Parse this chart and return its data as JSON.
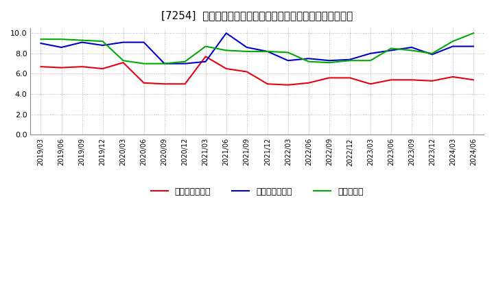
{
  "title": "[7254]  売上債権回転率、買入債務回転率、在庫回転率の推移",
  "x_labels": [
    "2019/03",
    "2019/06",
    "2019/09",
    "2019/12",
    "2020/03",
    "2020/06",
    "2020/09",
    "2020/12",
    "2021/03",
    "2021/06",
    "2021/09",
    "2021/12",
    "2022/03",
    "2022/06",
    "2022/09",
    "2022/12",
    "2023/03",
    "2023/06",
    "2023/09",
    "2023/12",
    "2024/03",
    "2024/06"
  ],
  "uri": [
    6.7,
    6.6,
    6.7,
    6.5,
    7.1,
    5.1,
    5.0,
    5.0,
    7.7,
    6.5,
    6.2,
    5.0,
    4.9,
    5.1,
    5.6,
    5.6,
    5.0,
    5.4,
    5.4,
    5.3,
    5.7,
    5.4
  ],
  "kainyuu": [
    9.0,
    8.6,
    9.1,
    8.8,
    9.1,
    9.1,
    7.0,
    7.0,
    7.2,
    10.0,
    8.6,
    8.2,
    7.3,
    7.5,
    7.3,
    7.4,
    8.0,
    8.3,
    8.6,
    7.9,
    8.7,
    8.7
  ],
  "zaiko": [
    9.4,
    9.4,
    9.3,
    9.2,
    7.3,
    7.0,
    7.0,
    7.2,
    8.7,
    8.3,
    8.2,
    8.2,
    8.1,
    7.2,
    7.1,
    7.3,
    7.3,
    8.5,
    8.3,
    8.0,
    9.2,
    10.0
  ],
  "color_red": "#e8000d",
  "color_blue": "#0000cc",
  "color_green": "#00aa00",
  "ylim_min": 0,
  "ylim_max": 10.5,
  "yticks": [
    0.0,
    2.0,
    4.0,
    6.0,
    8.0,
    10.0
  ],
  "legend_label_red": "売上債権回転率",
  "legend_label_blue": "買入債務回転率",
  "legend_label_green": "在庫回転率",
  "bg_color": "#ffffff",
  "grid_color": "#aaaaaa",
  "title_fontsize": 11,
  "tick_fontsize": 7,
  "ytick_fontsize": 8,
  "legend_fontsize": 9,
  "linewidth": 1.5
}
